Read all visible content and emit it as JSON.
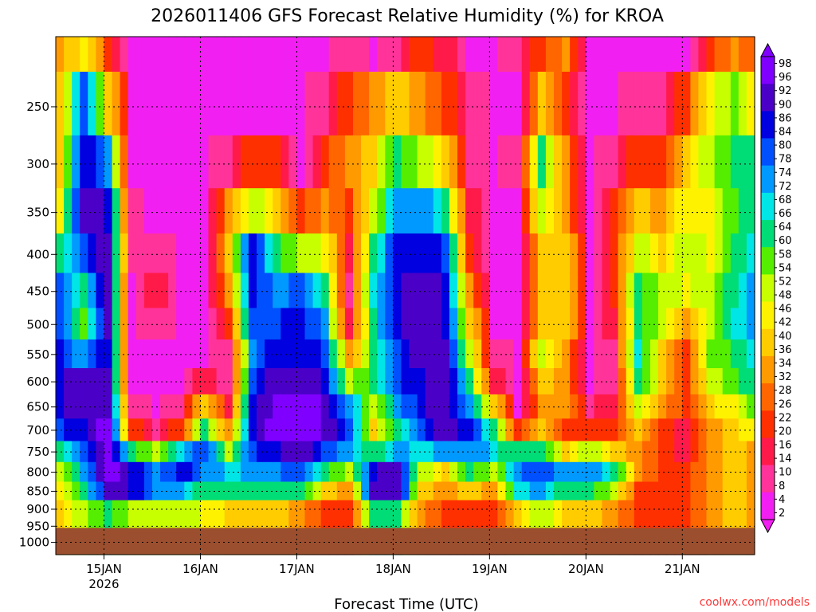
{
  "chart_data": {
    "type": "heatmap",
    "title": "2026011406 GFS Forecast Relative Humidity (%) for KROA",
    "xlabel": "Forecast Time (UTC)",
    "ylabel": "",
    "credit": "coolwx.com/models",
    "x_tick_labels": [
      "15JAN",
      "16JAN",
      "17JAN",
      "18JAN",
      "19JAN",
      "20JAN",
      "21JAN"
    ],
    "x_tick_sublabel": "2026",
    "x_tick_hours": [
      18,
      42,
      66,
      90,
      114,
      138,
      162
    ],
    "xlim_hours": [
      6,
      180
    ],
    "y_ticks": [
      250,
      300,
      350,
      400,
      450,
      500,
      550,
      600,
      650,
      700,
      750,
      800,
      850,
      900,
      950,
      1000
    ],
    "ylim_hpa": [
      200,
      1040
    ],
    "y_scale": "log",
    "grid": true,
    "colorbar_ticks": [
      2,
      4,
      8,
      10,
      14,
      16,
      20,
      22,
      26,
      28,
      32,
      34,
      36,
      40,
      42,
      46,
      48,
      52,
      54,
      58,
      60,
      64,
      66,
      68,
      72,
      74,
      78,
      80,
      84,
      86,
      90,
      92,
      96,
      98
    ],
    "colorbar_colors": [
      "#f21ff2",
      "#ff3399",
      "#ff1a4a",
      "#ff3000",
      "#ff6600",
      "#ff9a00",
      "#ffcc00",
      "#fff200",
      "#c8ff00",
      "#55ee00",
      "#00dd77",
      "#00e6e6",
      "#0099ff",
      "#0050ff",
      "#0000e0",
      "#4b00c8",
      "#8000ff"
    ],
    "terrain_color": "#9c4f2e",
    "terrain_hpa": 955,
    "series": [
      {
        "h": 6,
        "rh": [
          30,
          35,
          40,
          45,
          60,
          75,
          80,
          82,
          85,
          86,
          80,
          60,
          50,
          45,
          40,
          40
        ]
      },
      {
        "h": 12,
        "rh": [
          45,
          80,
          86,
          90,
          80,
          60,
          55,
          70,
          90,
          90,
          86,
          80,
          70,
          60,
          50,
          50
        ]
      },
      {
        "h": 18,
        "rh": [
          20,
          40,
          70,
          86,
          92,
          92,
          90,
          86,
          90,
          92,
          96,
          98,
          98,
          90,
          60,
          60
        ]
      },
      {
        "h": 24,
        "rh": [
          4,
          4,
          4,
          6,
          6,
          4,
          4,
          4,
          4,
          8,
          20,
          60,
          86,
          86,
          50,
          50
        ]
      },
      {
        "h": 30,
        "rh": [
          3,
          3,
          3,
          3,
          10,
          14,
          10,
          4,
          4,
          4,
          10,
          50,
          72,
          72,
          50,
          50
        ]
      },
      {
        "h": 36,
        "rh": [
          3,
          3,
          3,
          3,
          4,
          4,
          4,
          4,
          4,
          8,
          20,
          66,
          84,
          72,
          50,
          50
        ]
      },
      {
        "h": 42,
        "rh": [
          3,
          3,
          3,
          3,
          3,
          3,
          3,
          4,
          14,
          40,
          60,
          80,
          74,
          60,
          45,
          45
        ]
      },
      {
        "h": 48,
        "rh": [
          3,
          3,
          10,
          30,
          40,
          30,
          20,
          10,
          8,
          14,
          30,
          50,
          66,
          60,
          40,
          40
        ]
      },
      {
        "h": 54,
        "rh": [
          3,
          3,
          20,
          50,
          84,
          84,
          80,
          72,
          78,
          84,
          86,
          80,
          72,
          60,
          40,
          40
        ]
      },
      {
        "h": 60,
        "rh": [
          3,
          4,
          20,
          40,
          60,
          70,
          80,
          86,
          92,
          96,
          96,
          86,
          74,
          60,
          40,
          40
        ]
      },
      {
        "h": 66,
        "rh": [
          3,
          3,
          4,
          20,
          50,
          80,
          84,
          86,
          90,
          96,
          98,
          92,
          80,
          60,
          30,
          30
        ]
      },
      {
        "h": 72,
        "rh": [
          4,
          10,
          20,
          30,
          45,
          60,
          70,
          80,
          86,
          92,
          90,
          80,
          60,
          40,
          20,
          20
        ]
      },
      {
        "h": 78,
        "rh": [
          8,
          20,
          30,
          20,
          14,
          10,
          14,
          30,
          50,
          74,
          80,
          70,
          50,
          30,
          20,
          20
        ]
      },
      {
        "h": 84,
        "rh": [
          4,
          30,
          40,
          50,
          60,
          66,
          60,
          60,
          60,
          50,
          40,
          60,
          86,
          90,
          60,
          60
        ]
      },
      {
        "h": 90,
        "rh": [
          10,
          40,
          60,
          74,
          84,
          86,
          86,
          80,
          78,
          70,
          60,
          72,
          92,
          92,
          60,
          60
        ]
      },
      {
        "h": 96,
        "rh": [
          20,
          30,
          50,
          74,
          86,
          90,
          90,
          90,
          86,
          84,
          80,
          66,
          50,
          40,
          30,
          30
        ]
      },
      {
        "h": 102,
        "rh": [
          14,
          20,
          40,
          60,
          80,
          86,
          86,
          90,
          92,
          92,
          90,
          70,
          40,
          30,
          20,
          20
        ]
      },
      {
        "h": 108,
        "rh": [
          4,
          8,
          10,
          14,
          20,
          30,
          40,
          50,
          60,
          70,
          84,
          74,
          60,
          40,
          20,
          20
        ]
      },
      {
        "h": 114,
        "rh": [
          3,
          3,
          4,
          4,
          4,
          4,
          4,
          8,
          14,
          40,
          60,
          66,
          50,
          30,
          20,
          20
        ]
      },
      {
        "h": 120,
        "rh": [
          10,
          4,
          10,
          4,
          4,
          4,
          4,
          4,
          4,
          4,
          20,
          60,
          74,
          66,
          40,
          40
        ]
      },
      {
        "h": 126,
        "rh": [
          20,
          40,
          60,
          50,
          40,
          40,
          40,
          50,
          40,
          30,
          40,
          60,
          78,
          72,
          50,
          50
        ]
      },
      {
        "h": 132,
        "rh": [
          30,
          20,
          30,
          30,
          40,
          40,
          40,
          30,
          30,
          30,
          20,
          40,
          72,
          60,
          40,
          40
        ]
      },
      {
        "h": 138,
        "rh": [
          4,
          4,
          4,
          4,
          4,
          4,
          4,
          4,
          4,
          10,
          20,
          50,
          72,
          60,
          40,
          40
        ]
      },
      {
        "h": 144,
        "rh": [
          3,
          3,
          10,
          20,
          20,
          20,
          14,
          10,
          8,
          14,
          20,
          40,
          64,
          50,
          30,
          30
        ]
      },
      {
        "h": 150,
        "rh": [
          4,
          10,
          20,
          40,
          50,
          60,
          60,
          66,
          60,
          50,
          40,
          30,
          30,
          20,
          20,
          20
        ]
      },
      {
        "h": 156,
        "rh": [
          3,
          10,
          20,
          30,
          40,
          50,
          50,
          40,
          40,
          30,
          20,
          20,
          20,
          20,
          20,
          20
        ]
      },
      {
        "h": 162,
        "rh": [
          4,
          20,
          40,
          46,
          52,
          46,
          30,
          20,
          20,
          20,
          14,
          14,
          20,
          20,
          20,
          20
        ]
      },
      {
        "h": 168,
        "rh": [
          20,
          46,
          50,
          46,
          46,
          50,
          52,
          54,
          50,
          40,
          30,
          30,
          30,
          30,
          30,
          30
        ]
      },
      {
        "h": 174,
        "rh": [
          30,
          54,
          60,
          58,
          60,
          64,
          66,
          60,
          54,
          46,
          40,
          40,
          40,
          40,
          40,
          40
        ]
      },
      {
        "h": 180,
        "rh": [
          20,
          40,
          60,
          66,
          70,
          74,
          72,
          70,
          66,
          60,
          46,
          30,
          30,
          30,
          30,
          30
        ]
      }
    ],
    "series_levels_hpa": [
      200,
      250,
      300,
      350,
      400,
      450,
      500,
      550,
      600,
      650,
      700,
      750,
      800,
      850,
      900,
      950
    ]
  }
}
